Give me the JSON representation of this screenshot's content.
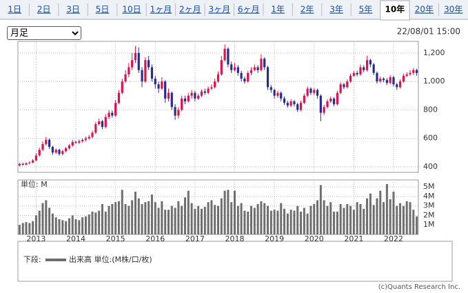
{
  "tabs": [
    "1日",
    "2日",
    "3日",
    "5日",
    "10日",
    "1ヶ月",
    "2ヶ月",
    "3ヶ月",
    "6ヶ月",
    "1年",
    "2年",
    "3年",
    "5年",
    "10年",
    "20年",
    "30年"
  ],
  "active_tab": 13,
  "period_select": "月足",
  "timestamp": "22/08/01 15:00",
  "legend": {
    "prefix": "下段:",
    "label": "出来高 単位:(M株/口/枚)"
  },
  "copyright": "(c)Quants Research Inc.",
  "chart_data": [
    {
      "type": "candlestick",
      "up_color": "#e0104f",
      "down_color": "#2b2b8f",
      "grid": true,
      "ylim": [
        361,
        1282
      ],
      "yticks": [
        400,
        600,
        800,
        {
          "value": 1000,
          "label": "1,000"
        },
        {
          "value": 1200,
          "label": "1,200"
        }
      ],
      "xlim": [
        -0.5,
        120.5
      ],
      "xticks": [
        {
          "value": 5,
          "label": "2013"
        },
        {
          "value": 17,
          "label": "2014"
        },
        {
          "value": 29,
          "label": "2015"
        },
        {
          "value": 41,
          "label": "2016"
        },
        {
          "value": 53,
          "label": "2017"
        },
        {
          "value": 65,
          "label": "2018"
        },
        {
          "value": 77,
          "label": "2019"
        },
        {
          "value": 89,
          "label": "2020"
        },
        {
          "value": 101,
          "label": "2021"
        },
        {
          "value": 113,
          "label": "2022"
        }
      ],
      "candles": [
        [
          410,
          428,
          402,
          420
        ],
        [
          420,
          430,
          408,
          415
        ],
        [
          415,
          432,
          410,
          425
        ],
        [
          425,
          440,
          418,
          430
        ],
        [
          430,
          455,
          425,
          445
        ],
        [
          445,
          495,
          440,
          480
        ],
        [
          480,
          535,
          470,
          520
        ],
        [
          520,
          580,
          510,
          560
        ],
        [
          560,
          610,
          550,
          590
        ],
        [
          590,
          600,
          525,
          540
        ],
        [
          540,
          548,
          485,
          500
        ],
        [
          500,
          530,
          490,
          520
        ],
        [
          520,
          528,
          478,
          490
        ],
        [
          490,
          520,
          480,
          510
        ],
        [
          510,
          540,
          500,
          530
        ],
        [
          530,
          560,
          520,
          550
        ],
        [
          550,
          590,
          540,
          575
        ],
        [
          575,
          585,
          560,
          570
        ],
        [
          570,
          592,
          560,
          580
        ],
        [
          580,
          600,
          570,
          590
        ],
        [
          590,
          612,
          580,
          600
        ],
        [
          600,
          625,
          590,
          610
        ],
        [
          610,
          655,
          600,
          640
        ],
        [
          640,
          715,
          630,
          700
        ],
        [
          700,
          740,
          690,
          720
        ],
        [
          720,
          730,
          665,
          680
        ],
        [
          680,
          770,
          670,
          750
        ],
        [
          750,
          800,
          735,
          780
        ],
        [
          780,
          795,
          745,
          760
        ],
        [
          760,
          870,
          750,
          850
        ],
        [
          850,
          940,
          840,
          920
        ],
        [
          920,
          1020,
          910,
          1000
        ],
        [
          1000,
          1080,
          990,
          1050
        ],
        [
          1050,
          1130,
          1030,
          1100
        ],
        [
          1100,
          1200,
          1080,
          1150
        ],
        [
          1150,
          1250,
          1130,
          1200
        ],
        [
          1200,
          1240,
          1060,
          1080
        ],
        [
          1080,
          1100,
          960,
          1000
        ],
        [
          1000,
          1170,
          990,
          1150
        ],
        [
          1150,
          1180,
          1080,
          1100
        ],
        [
          1100,
          1120,
          1000,
          1020
        ],
        [
          1020,
          1040,
          950,
          980
        ],
        [
          980,
          1000,
          920,
          950
        ],
        [
          950,
          1030,
          940,
          1000
        ],
        [
          1000,
          1010,
          850,
          880
        ],
        [
          880,
          950,
          860,
          920
        ],
        [
          920,
          930,
          800,
          820
        ],
        [
          820,
          840,
          730,
          760
        ],
        [
          760,
          820,
          740,
          800
        ],
        [
          800,
          900,
          790,
          880
        ],
        [
          880,
          900,
          840,
          860
        ],
        [
          860,
          920,
          850,
          900
        ],
        [
          900,
          940,
          880,
          920
        ],
        [
          920,
          935,
          860,
          880
        ],
        [
          880,
          915,
          870,
          900
        ],
        [
          900,
          945,
          890,
          930
        ],
        [
          930,
          950,
          905,
          920
        ],
        [
          920,
          965,
          910,
          950
        ],
        [
          950,
          980,
          940,
          960
        ],
        [
          960,
          1020,
          950,
          1000
        ],
        [
          1000,
          1070,
          990,
          1050
        ],
        [
          1050,
          1180,
          1040,
          1150
        ],
        [
          1150,
          1260,
          1140,
          1230
        ],
        [
          1230,
          1240,
          1100,
          1120
        ],
        [
          1120,
          1140,
          1060,
          1080
        ],
        [
          1080,
          1130,
          1070,
          1100
        ],
        [
          1100,
          1115,
          1040,
          1060
        ],
        [
          1060,
          1075,
          1000,
          1020
        ],
        [
          1020,
          1035,
          985,
          1000
        ],
        [
          1000,
          1075,
          990,
          1060
        ],
        [
          1060,
          1100,
          1045,
          1080
        ],
        [
          1080,
          1120,
          1070,
          1100
        ],
        [
          1100,
          1115,
          1060,
          1080
        ],
        [
          1080,
          1190,
          1070,
          1160
        ],
        [
          1160,
          1170,
          1080,
          1100
        ],
        [
          1100,
          1110,
          940,
          960
        ],
        [
          960,
          975,
          920,
          940
        ],
        [
          940,
          950,
          880,
          900
        ],
        [
          900,
          935,
          885,
          920
        ],
        [
          920,
          930,
          860,
          880
        ],
        [
          880,
          895,
          835,
          850
        ],
        [
          850,
          865,
          815,
          830
        ],
        [
          830,
          875,
          820,
          860
        ],
        [
          860,
          870,
          825,
          840
        ],
        [
          840,
          850,
          785,
          800
        ],
        [
          800,
          865,
          790,
          850
        ],
        [
          850,
          915,
          840,
          900
        ],
        [
          900,
          965,
          890,
          950
        ],
        [
          950,
          960,
          905,
          920
        ],
        [
          920,
          955,
          905,
          940
        ],
        [
          940,
          950,
          880,
          900
        ],
        [
          900,
          910,
          720,
          780
        ],
        [
          780,
          835,
          765,
          820
        ],
        [
          820,
          875,
          810,
          860
        ],
        [
          860,
          895,
          850,
          880
        ],
        [
          880,
          890,
          825,
          840
        ],
        [
          840,
          935,
          830,
          920
        ],
        [
          920,
          995,
          910,
          980
        ],
        [
          980,
          990,
          945,
          960
        ],
        [
          960,
          1015,
          950,
          1000
        ],
        [
          1000,
          1055,
          990,
          1040
        ],
        [
          1040,
          1075,
          1030,
          1060
        ],
        [
          1060,
          1075,
          1035,
          1050
        ],
        [
          1050,
          1120,
          1040,
          1100
        ],
        [
          1100,
          1115,
          1065,
          1080
        ],
        [
          1080,
          1180,
          1070,
          1150
        ],
        [
          1150,
          1160,
          1100,
          1120
        ],
        [
          1120,
          1130,
          1045,
          1060
        ],
        [
          1060,
          1070,
          985,
          1000
        ],
        [
          1000,
          1035,
          990,
          1020
        ],
        [
          1020,
          1030,
          995,
          1010
        ],
        [
          1010,
          1025,
          975,
          990
        ],
        [
          990,
          1045,
          980,
          1030
        ],
        [
          1030,
          1040,
          965,
          980
        ],
        [
          980,
          990,
          940,
          960
        ],
        [
          960,
          1015,
          950,
          1000
        ],
        [
          1000,
          1055,
          990,
          1040
        ],
        [
          1040,
          1065,
          1030,
          1050
        ],
        [
          1050,
          1080,
          1040,
          1060
        ],
        [
          1060,
          1095,
          1045,
          1080
        ],
        [
          1080,
          1090,
          1040,
          1060
        ]
      ]
    },
    {
      "type": "bar",
      "unit_label": "単位: M",
      "color": "#6e6e6e",
      "grid": true,
      "ylim": [
        0,
        5.74
      ],
      "yticks": [
        {
          "value": 1,
          "label": "1M"
        },
        {
          "value": 2,
          "label": "2M"
        },
        {
          "value": 3,
          "label": "3M"
        },
        {
          "value": 4,
          "label": "4M"
        },
        {
          "value": 5,
          "label": "5M"
        }
      ],
      "xlim": [
        -0.5,
        120.5
      ],
      "values": [
        1.0,
        1.2,
        1.3,
        1.2,
        1.4,
        2.0,
        2.5,
        3.3,
        3.6,
        2.8,
        2.2,
        1.8,
        1.6,
        1.5,
        1.4,
        1.7,
        2.0,
        1.6,
        1.5,
        1.8,
        1.9,
        2.1,
        2.4,
        2.3,
        2.5,
        3.2,
        2.4,
        3.0,
        3.2,
        3.4,
        3.5,
        4.7,
        3.2,
        3.0,
        3.6,
        4.5,
        3.8,
        3.2,
        3.4,
        3.5,
        4.2,
        3.4,
        2.8,
        3.5,
        2.6,
        2.6,
        3.0,
        2.8,
        3.5,
        3.0,
        3.9,
        4.6,
        3.3,
        2.7,
        3.0,
        2.7,
        2.9,
        3.4,
        3.6,
        3.1,
        3.0,
        3.8,
        4.6,
        4.7,
        3.4,
        4.6,
        3.0,
        3.3,
        2.5,
        2.4,
        3.0,
        2.8,
        3.2,
        3.5,
        3.3,
        3.0,
        2.5,
        2.6,
        2.5,
        3.3,
        2.7,
        2.2,
        2.6,
        2.5,
        3.0,
        2.4,
        2.8,
        2.2,
        3.0,
        3.2,
        3.6,
        5.2,
        3.6,
        3.0,
        3.4,
        2.4,
        2.4,
        3.2,
        2.8,
        3.2,
        3.0,
        2.6,
        3.4,
        3.2,
        2.7,
        3.8,
        4.3,
        3.1,
        3.8,
        4.6,
        3.4,
        5.3,
        3.7,
        4.5,
        3.0,
        3.3,
        3.0,
        3.5,
        3.4,
        2.6,
        1.9
      ]
    }
  ]
}
